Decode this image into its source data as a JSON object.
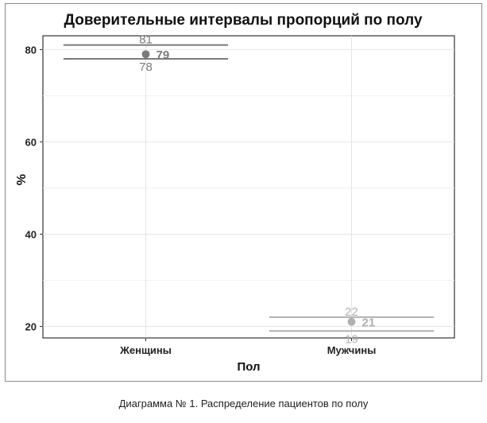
{
  "chart_data": {
    "type": "errorbar",
    "title": "Доверительные интервалы пропорций по полу",
    "xlabel": "Пол",
    "ylabel": "%",
    "categories": [
      "Женщины",
      "Мужчины"
    ],
    "points": [
      {
        "category": "Женщины",
        "value": 79,
        "lower": 78,
        "upper": 81,
        "label": "79",
        "lower_label": "78",
        "upper_label": "81",
        "color": "#7a7a7a"
      },
      {
        "category": "Мужчины",
        "value": 21,
        "lower": 19,
        "upper": 22,
        "label": "21",
        "lower_label": "19",
        "upper_label": "22",
        "color": "#b0b0b0"
      }
    ],
    "yticks": [
      20,
      40,
      60,
      80
    ],
    "ytick_labels": [
      "20",
      "40",
      "60",
      "80"
    ],
    "ylim": [
      17.5,
      83
    ],
    "grid": true
  },
  "caption": "Диаграмма № 1. Распределение пациентов по полу"
}
